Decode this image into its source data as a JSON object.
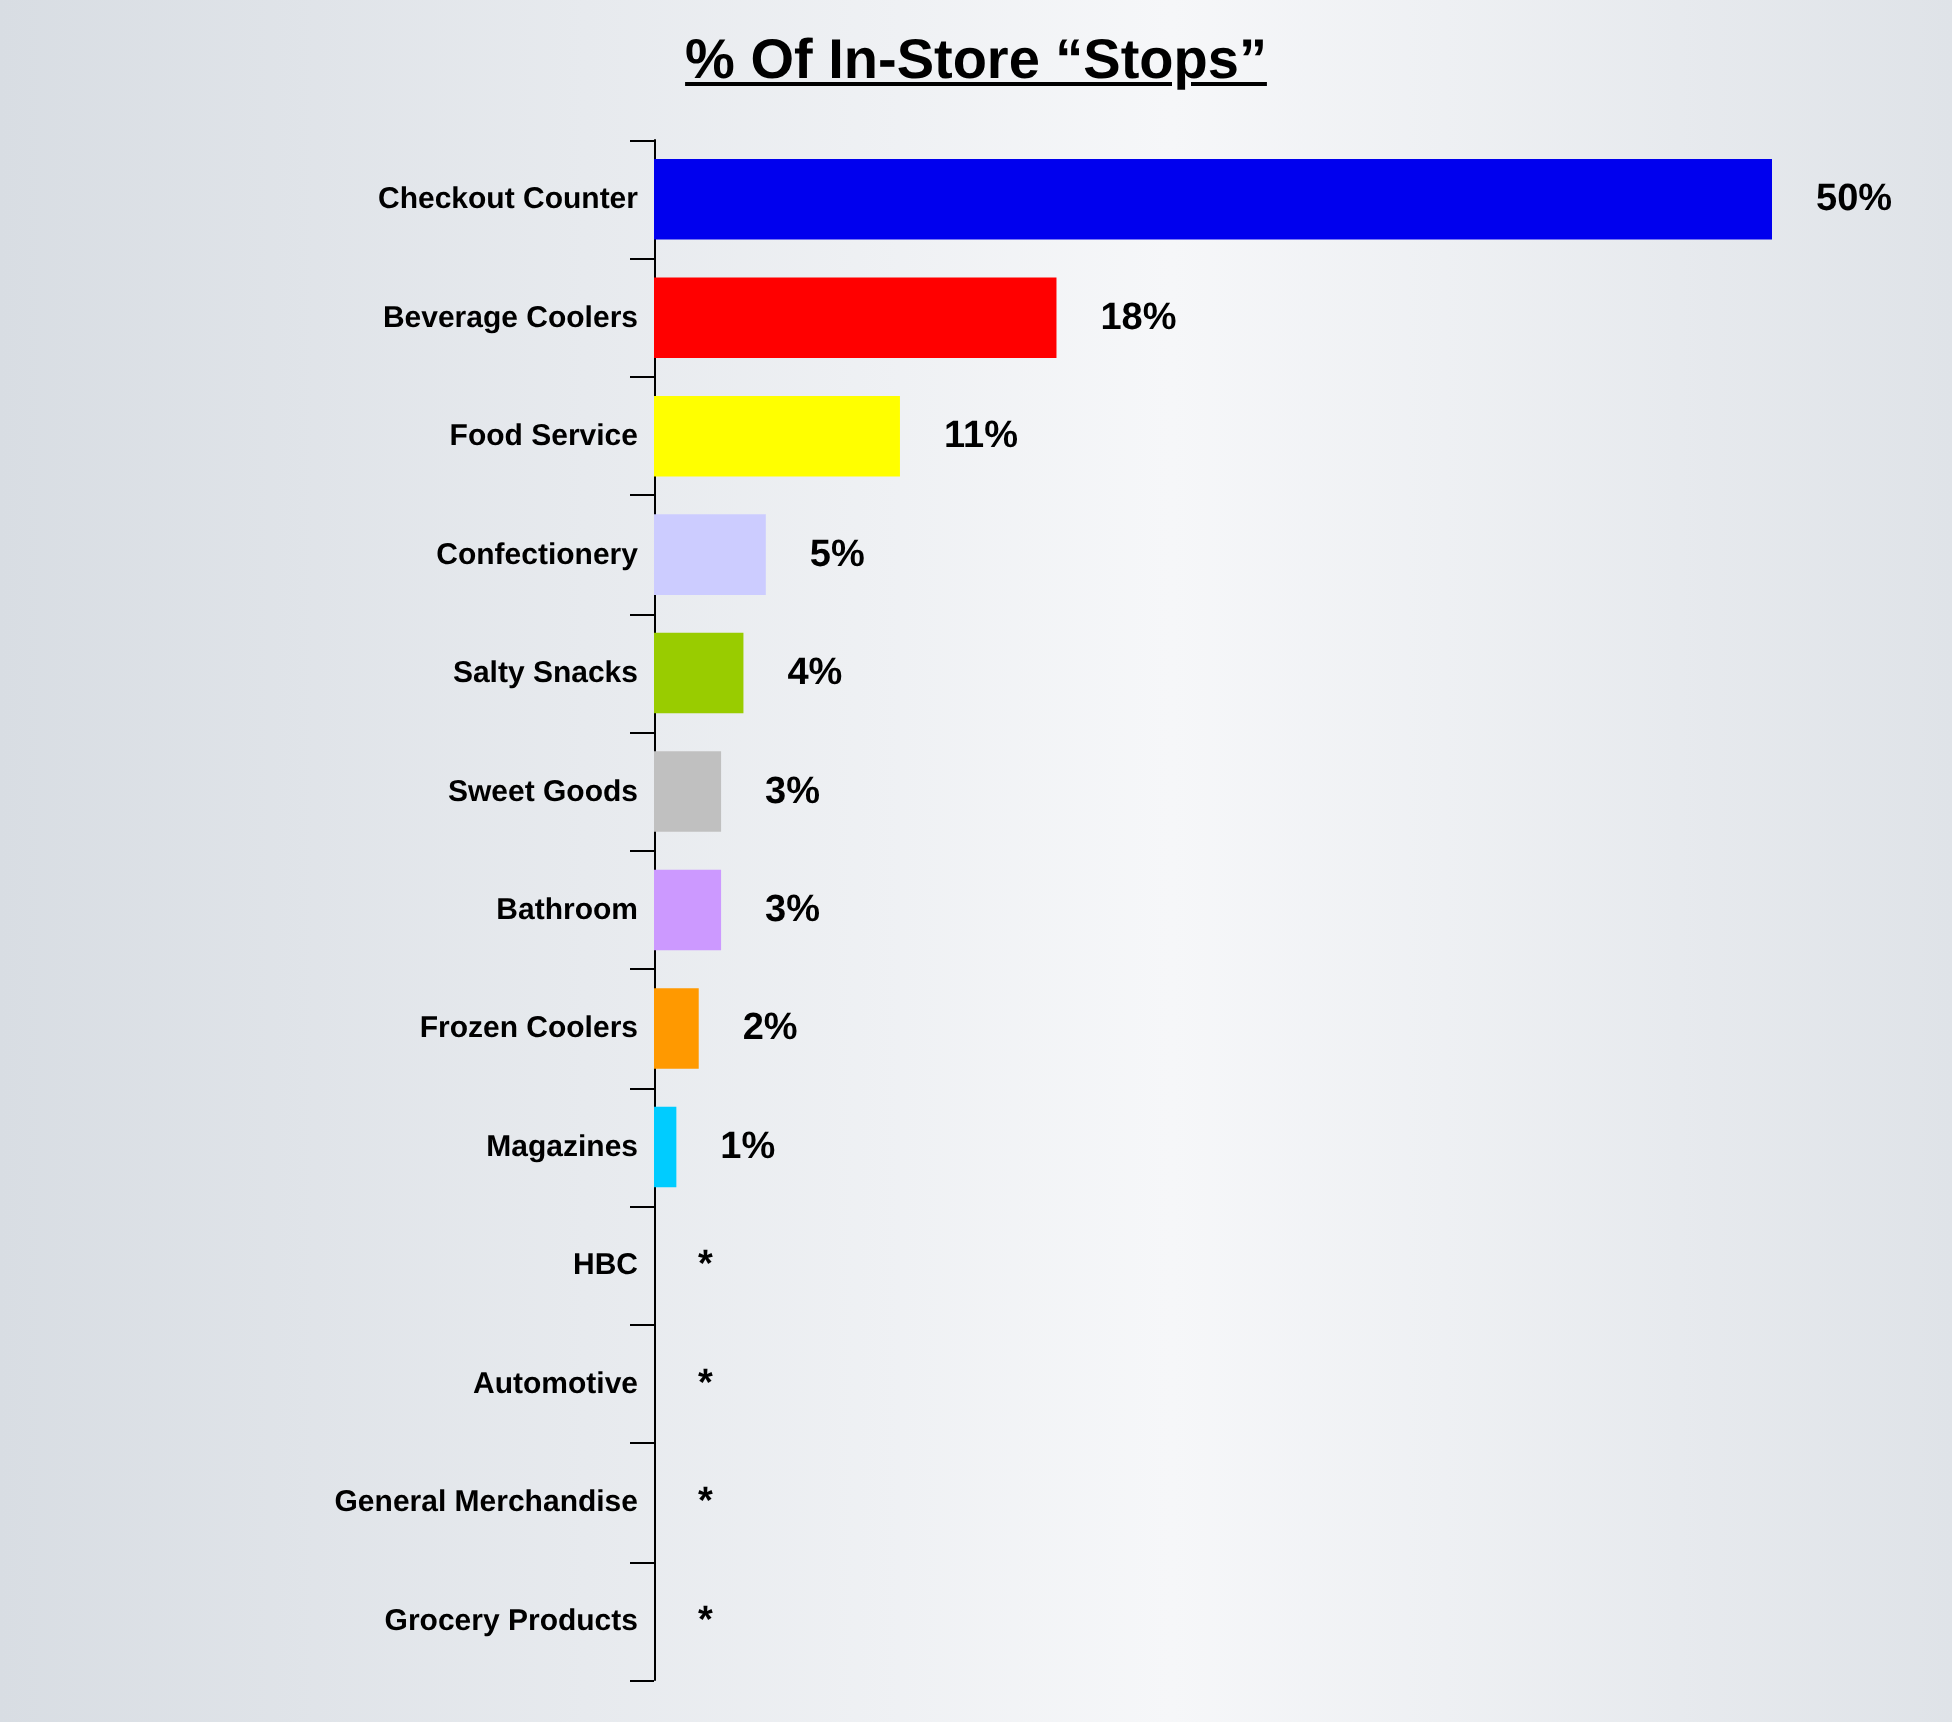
{
  "chart_data": {
    "type": "bar",
    "title": "% Of In-Store “Stops”",
    "orientation": "horizontal",
    "categories": [
      "Checkout Counter",
      "Beverage Coolers",
      "Food Service",
      "Confectionery",
      "Salty Snacks",
      "Sweet Goods",
      "Bathroom",
      "Frozen Coolers",
      "Magazines",
      "HBC",
      "Automotive",
      "General Merchandise",
      "Grocery Products"
    ],
    "values": [
      50,
      18,
      11,
      5,
      4,
      3,
      3,
      2,
      1,
      null,
      null,
      null,
      null
    ],
    "value_labels": [
      "50%",
      "18%",
      "11%",
      "5%",
      "4%",
      "3%",
      "3%",
      "2%",
      "1%",
      "*",
      "*",
      "*",
      "*"
    ],
    "colors": [
      "#0000ee",
      "#ff0000",
      "#ffff00",
      "#ccccff",
      "#99cc00",
      "#c0c0c0",
      "#cc99ff",
      "#ff9900",
      "#00ccff",
      "#4a6a8f",
      "#7a6000",
      "#2f7a7a",
      "#8a3a0a"
    ]
  }
}
